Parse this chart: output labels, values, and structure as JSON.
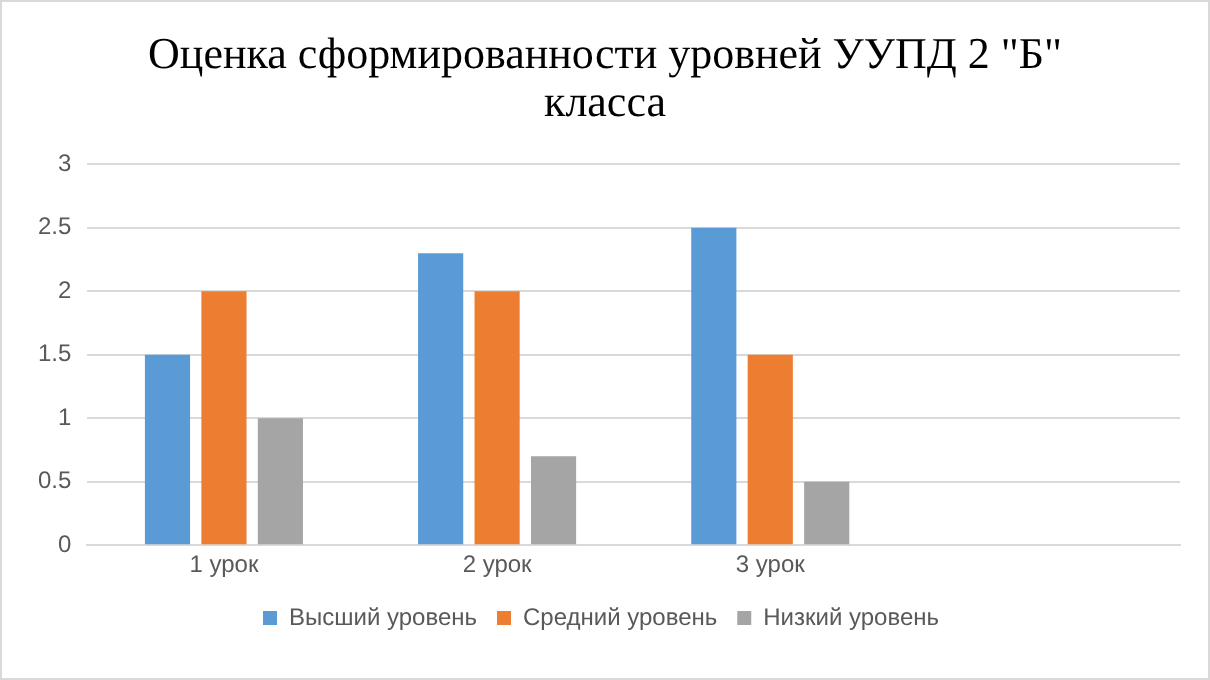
{
  "chart_data": {
    "type": "bar",
    "title": "Оценка сформированности уровней УУПД 2 \"Б\" класса",
    "categories": [
      "1 урок",
      "2 урок",
      "3 урок",
      null
    ],
    "series": [
      {
        "name": "Высший уровень",
        "color": "#5b9bd5",
        "values": [
          1.5,
          2.3,
          2.5,
          null
        ]
      },
      {
        "name": "Средний уровень",
        "color": "#ed7d31",
        "values": [
          2,
          2,
          1.5,
          null
        ]
      },
      {
        "name": "Низкий уровень",
        "color": "#a5a5a5",
        "values": [
          1,
          0.7,
          0.5,
          null
        ]
      }
    ],
    "ylim": [
      0,
      3
    ],
    "yticks": [
      0,
      0.5,
      1,
      1.5,
      2,
      2.5,
      3
    ],
    "grid": "y",
    "legend": "bottom"
  }
}
